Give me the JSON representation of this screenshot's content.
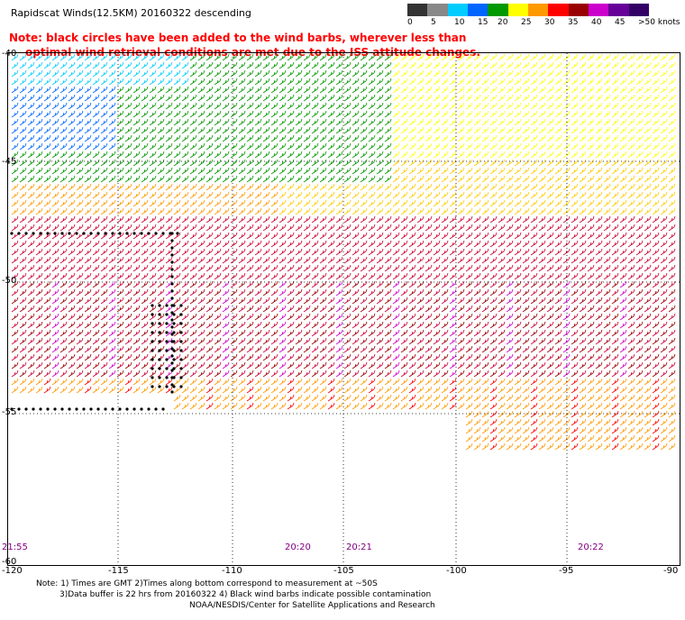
{
  "title": "Rapidscat Winds(12.5KM) 20160322 descending",
  "note_line1": "Note: black circles have been added to the wind barbs, wherever less than",
  "note_line2": "optimal wind retrieval conditions are met due to the ISS attitude changes.",
  "legend": {
    "labels": [
      "0",
      "5",
      "10",
      "15",
      "20",
      "25",
      "30",
      "35",
      "40",
      "45",
      ">50 knots"
    ],
    "colors": [
      "#333333",
      "#888888",
      "#00ccff",
      "#0066ff",
      "#009900",
      "#ffff00",
      "#ff9900",
      "#ff0000",
      "#990000",
      "#cc00cc",
      "#660099",
      "#330066"
    ]
  },
  "y_labels": [
    "-40",
    "-45",
    "-50",
    "-55",
    "-60"
  ],
  "x_labels": [
    "-120",
    "-115",
    "-110",
    "-105",
    "-100",
    "-95",
    "-90"
  ],
  "time_labels": [
    "21:55",
    "20:20",
    "20:21",
    "20:22"
  ],
  "footnote_line1": "Note: 1) Times are GMT 2)Times along bottom correspond to measurement at ~50S",
  "footnote_line2": "3)Data buffer is 22 hrs from 20160322 4) Black wind barbs indicate possible contamination",
  "credit": "NOAA/NESDIS/Center for Satellite Applications and Research"
}
